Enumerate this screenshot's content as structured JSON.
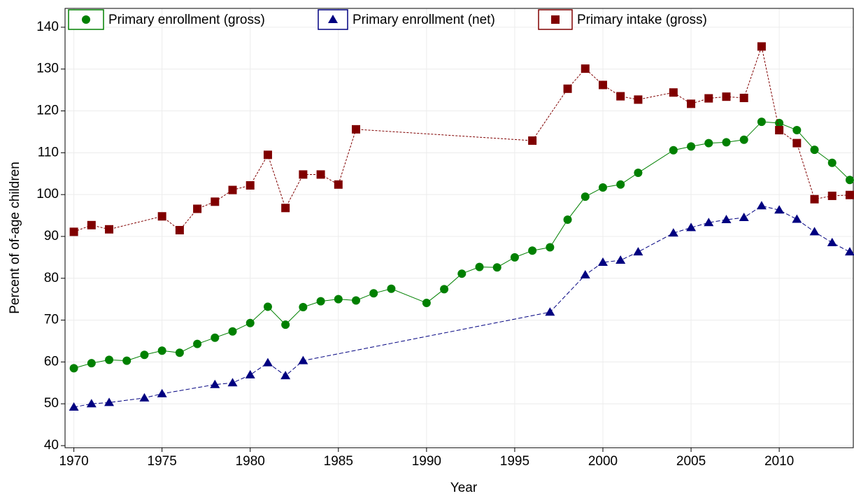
{
  "chart_data": {
    "type": "line",
    "x_label": "Year",
    "y_label": "Percent of of-age children",
    "xlim": [
      1969.5,
      2014.2
    ],
    "ylim": [
      39.5,
      144.5
    ],
    "xticks": [
      1970,
      1975,
      1980,
      1985,
      1990,
      1995,
      2000,
      2005,
      2010
    ],
    "yticks": [
      40,
      50,
      60,
      70,
      80,
      90,
      100,
      110,
      120,
      130,
      140
    ],
    "grid": true,
    "legend": "top",
    "series": [
      {
        "name": "Primary enrollment (gross)",
        "color": "#008000",
        "marker": "circle",
        "line": "solid",
        "x": [
          1970,
          1971,
          1972,
          1973,
          1974,
          1975,
          1976,
          1977,
          1978,
          1979,
          1980,
          1981,
          1982,
          1983,
          1984,
          1985,
          1986,
          1987,
          1988,
          1990,
          1991,
          1992,
          1993,
          1994,
          1995,
          1996,
          1997,
          1998,
          1999,
          2000,
          2001,
          2002,
          2004,
          2005,
          2006,
          2007,
          2008,
          2009,
          2010,
          2011,
          2012,
          2013,
          2014
        ],
        "values": [
          58.5,
          59.7,
          60.5,
          60.3,
          61.7,
          62.7,
          62.2,
          64.3,
          65.8,
          67.3,
          69.3,
          73.2,
          68.9,
          73.1,
          74.5,
          75.0,
          74.7,
          76.4,
          77.5,
          74.1,
          77.4,
          81.1,
          82.7,
          82.6,
          85.0,
          86.6,
          87.4,
          94.0,
          99.5,
          101.7,
          102.4,
          105.2,
          110.6,
          111.5,
          112.3,
          112.5,
          113.1,
          117.4,
          117.1,
          115.4,
          110.7,
          107.6,
          103.5
        ]
      },
      {
        "name": "Primary enrollment (net)",
        "color": "#000080",
        "marker": "triangle",
        "line": "dashed",
        "x": [
          1970,
          1971,
          1972,
          1974,
          1975,
          1978,
          1979,
          1980,
          1981,
          1982,
          1983,
          1997,
          1999,
          2000,
          2001,
          2002,
          2004,
          2005,
          2006,
          2007,
          2008,
          2009,
          2010,
          2011,
          2012,
          2013,
          2014
        ],
        "values": [
          49.2,
          50.0,
          50.3,
          51.4,
          52.4,
          54.6,
          55.0,
          56.9,
          59.8,
          56.7,
          60.3,
          71.9,
          80.8,
          83.8,
          84.3,
          86.3,
          90.8,
          92.1,
          93.3,
          94.0,
          94.5,
          97.3,
          96.3,
          94.1,
          91.1,
          88.5,
          86.3
        ]
      },
      {
        "name": "Primary intake (gross)",
        "color": "#800000",
        "marker": "square",
        "line": "dotted",
        "x": [
          1970,
          1971,
          1972,
          1975,
          1976,
          1977,
          1978,
          1979,
          1980,
          1981,
          1982,
          1983,
          1984,
          1985,
          1986,
          1996,
          1998,
          1999,
          2000,
          2001,
          2002,
          2004,
          2005,
          2006,
          2007,
          2008,
          2009,
          2010,
          2011,
          2012,
          2013,
          2014
        ],
        "values": [
          91.1,
          92.7,
          91.7,
          94.8,
          91.5,
          96.6,
          98.3,
          101.1,
          102.2,
          109.5,
          96.8,
          104.8,
          104.8,
          102.4,
          115.6,
          112.9,
          125.3,
          130.1,
          126.2,
          123.5,
          122.7,
          124.4,
          121.7,
          123.0,
          123.4,
          123.1,
          135.4,
          115.4,
          112.3,
          98.9,
          99.7,
          99.9
        ]
      }
    ]
  }
}
